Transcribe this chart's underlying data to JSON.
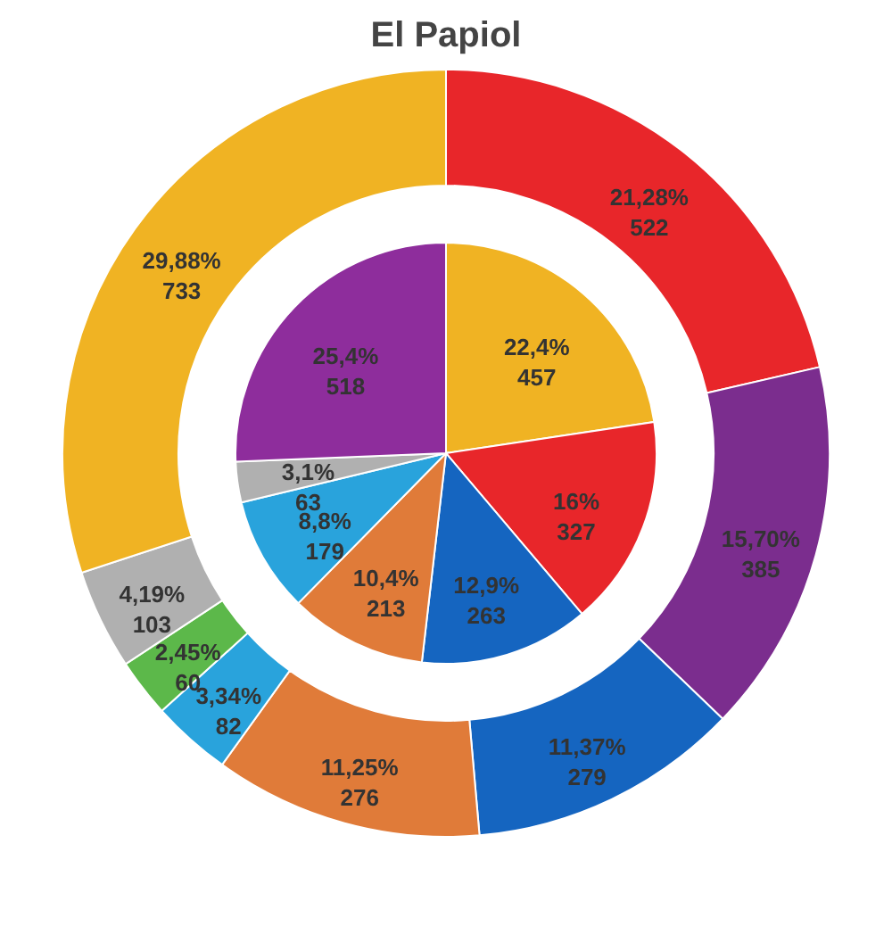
{
  "chart_data": {
    "type": "donut",
    "title": "El Papiol",
    "legend": false,
    "series": [
      {
        "values": [
          522,
          385,
          279,
          276,
          82,
          60,
          103,
          733
        ],
        "colors": [
          "#e8262a",
          "#7b2d8e",
          "#1565c0",
          "#e07b39",
          "#29a3dc",
          "#5cb84a",
          "#b0b0b0",
          "#f0b323"
        ],
        "value_labels": [
          "21,28%\n522",
          "15,70%\n385",
          "11,37%\n279",
          "11,25%\n276",
          "3,34%\n82",
          "2,45%\n60",
          "4,19%\n103",
          "29,88%\n733"
        ]
      },
      {
        "values": [
          457,
          327,
          263,
          213,
          179,
          63,
          518
        ],
        "colors": [
          "#f0b323",
          "#e8262a",
          "#1565c0",
          "#e07b39",
          "#29a3dc",
          "#b0b0b0",
          "#8e2d9c"
        ],
        "value_labels": [
          "22,4%\n457",
          "16%\n327",
          "12,9%\n263",
          "10,4%\n213",
          "8,8%\n179",
          "3,1%\n63",
          "25,4%\n518"
        ]
      }
    ]
  }
}
